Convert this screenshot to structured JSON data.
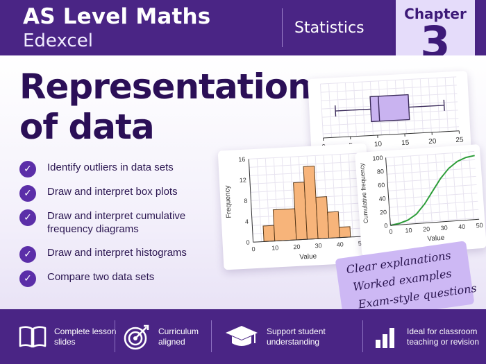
{
  "header": {
    "title": "AS Level Maths",
    "subtitle": "Edexcel",
    "topic": "Statistics",
    "chapter_label": "Chapter",
    "chapter_number": "3"
  },
  "main": {
    "title_line1": "Representations",
    "title_line2": "of data",
    "checklist": [
      "Identify outliers in data sets",
      "Draw and interpret box plots",
      "Draw and interpret cumulative frequency diagrams",
      "Draw and interpret histograms",
      "Compare two data sets"
    ]
  },
  "note": {
    "lines": [
      "Clear explanations",
      "Worked examples",
      "Exam-style questions"
    ]
  },
  "footer": {
    "features": [
      {
        "icon": "book-icon",
        "text": "Complete lesson slides"
      },
      {
        "icon": "target-icon",
        "text": "Curriculum aligned"
      },
      {
        "icon": "graduation-cap-icon",
        "text": "Support student understanding"
      },
      {
        "icon": "bar-chart-icon",
        "text": "Ideal for classroom teaching or revision"
      }
    ]
  },
  "colors": {
    "brand_purple": "#4a2585",
    "accent_light": "#e5dcfa",
    "histogram_fill": "#f7b47a",
    "boxplot_fill": "#c9b3f0",
    "cumfreq_line": "#2e9e3a"
  },
  "chart_data": [
    {
      "type": "boxplot",
      "x_ticks": [
        0,
        5,
        10,
        15,
        20,
        25
      ],
      "xlim": [
        0,
        25
      ],
      "min": 2.5,
      "q1": 9,
      "median": 10.5,
      "q3": 16,
      "max": 22.5
    },
    {
      "type": "bar",
      "xlabel": "Value",
      "ylabel": "Frequency",
      "x_ticks": [
        0,
        10,
        20,
        30,
        40,
        50
      ],
      "y_ticks": [
        0,
        4,
        8,
        12,
        16
      ],
      "xlim": [
        0,
        50
      ],
      "ylim": [
        0,
        16
      ],
      "bins": [
        [
          5,
          10
        ],
        [
          10,
          20
        ],
        [
          20,
          25
        ],
        [
          25,
          30
        ],
        [
          30,
          35
        ],
        [
          35,
          40
        ],
        [
          40,
          45
        ]
      ],
      "values": [
        3,
        6,
        11,
        14,
        8,
        5,
        2
      ]
    },
    {
      "type": "line",
      "xlabel": "Value",
      "ylabel": "Cumulative frequency",
      "x_ticks": [
        0,
        10,
        20,
        30,
        40,
        50
      ],
      "y_ticks": [
        0,
        20,
        40,
        60,
        80,
        100
      ],
      "xlim": [
        0,
        50
      ],
      "ylim": [
        0,
        100
      ],
      "x": [
        0,
        5,
        10,
        15,
        20,
        25,
        30,
        35,
        40,
        45,
        50
      ],
      "y": [
        0,
        2,
        6,
        14,
        28,
        46,
        64,
        78,
        87,
        92,
        94
      ]
    }
  ]
}
